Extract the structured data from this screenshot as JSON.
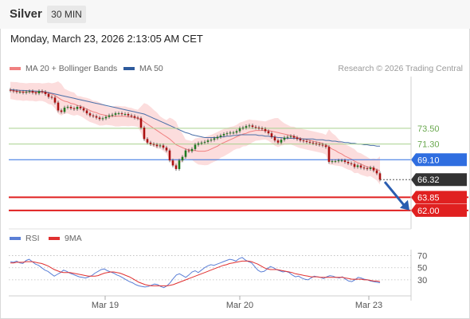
{
  "header": {
    "instrument": "Silver",
    "timeframe": "30 MIN"
  },
  "datetime": "Monday, March 23, 2026 2:13:05 AM CET",
  "legend": {
    "ma20": "MA 20 + Bollinger Bands",
    "ma50": "MA 50",
    "credit": "Research © 2026 Trading Central"
  },
  "rsi_legend": {
    "rsi": "RSI",
    "ma": "9MA"
  },
  "colors": {
    "candle": "#1f7a1f",
    "ma20": "#f08080",
    "bands": "#fbd4d4",
    "ma50": "#4a6fa8",
    "resistance": "#a9d18e",
    "pivot": "#2f6ee0",
    "support": "#e02020",
    "current": "#333333",
    "arrow": "#2a5db0",
    "rsi": "#5b7fd6",
    "rsi_ma": "#e03030"
  },
  "chart_data": [
    {
      "type": "candlestick",
      "title": "Silver 30 MIN",
      "x_ticks": [
        "Mar 19",
        "Mar 20",
        "Mar 23"
      ],
      "ylim": [
        60.2,
        80.3
      ],
      "levels": [
        {
          "value": 73.5,
          "label": "73.50",
          "kind": "resistance"
        },
        {
          "value": 71.3,
          "label": "71.30",
          "kind": "resistance"
        },
        {
          "value": 69.1,
          "label": "69.10",
          "kind": "pivot"
        },
        {
          "value": 66.32,
          "label": "66.32",
          "kind": "current"
        },
        {
          "value": 63.85,
          "label": "63.85",
          "kind": "support"
        },
        {
          "value": 62.0,
          "label": "62.00",
          "kind": "support"
        }
      ],
      "close": [
        78.8,
        78.7,
        78.6,
        78.6,
        78.5,
        78.6,
        78.7,
        78.5,
        78.4,
        78.7,
        78.6,
        78.3,
        77.9,
        77.8,
        77.1,
        76.0,
        75.8,
        76.4,
        76.5,
        76.3,
        76.2,
        76.5,
        76.3,
        76.0,
        75.6,
        75.3,
        75.2,
        75.0,
        74.8,
        74.9,
        75.1,
        75.3,
        75.4,
        75.6,
        75.6,
        75.5,
        75.5,
        75.3,
        75.2,
        75.0,
        74.9,
        73.6,
        72.0,
        71.5,
        71.3,
        71.2,
        71.0,
        71.1,
        70.8,
        70.4,
        69.0,
        68.3,
        67.8,
        69.0,
        69.5,
        70.4,
        70.3,
        70.6,
        71.2,
        71.4,
        71.5,
        71.6,
        71.8,
        71.9,
        72.1,
        72.3,
        72.5,
        72.7,
        72.8,
        72.9,
        72.9,
        73.1,
        73.5,
        73.6,
        73.8,
        73.9,
        73.7,
        73.6,
        73.5,
        73.4,
        73.1,
        72.8,
        72.3,
        71.8,
        71.5,
        71.9,
        72.2,
        72.3,
        72.4,
        72.2,
        72.0,
        71.8,
        71.7,
        71.6,
        71.5,
        71.4,
        71.3,
        71.2,
        71.1,
        70.9,
        68.8,
        68.9,
        68.9,
        69.0,
        69.0,
        68.8,
        68.6,
        68.5,
        68.1,
        68.3,
        68.0,
        67.9,
        67.8,
        68.0,
        67.6,
        67.2,
        66.32
      ],
      "ma20": [
        78.8,
        78.75,
        78.7,
        78.65,
        78.6,
        78.6,
        78.6,
        78.6,
        78.55,
        78.6,
        78.55,
        78.5,
        78.4,
        78.3,
        78.1,
        77.8,
        77.5,
        77.3,
        77.2,
        77.0,
        76.9,
        76.7,
        76.6,
        76.4,
        76.2,
        76.0,
        75.8,
        75.7,
        75.5,
        75.4,
        75.3,
        75.2,
        75.2,
        75.2,
        75.2,
        75.2,
        75.2,
        75.1,
        75.1,
        75.0,
        74.9,
        74.7,
        74.4,
        74.1,
        73.8,
        73.5,
        73.2,
        72.9,
        72.6,
        72.3,
        72.0,
        71.6,
        71.2,
        71.0,
        70.8,
        70.6,
        70.5,
        70.4,
        70.4,
        70.3,
        70.3,
        70.3,
        70.4,
        70.6,
        70.8,
        71.0,
        71.3,
        71.5,
        71.7,
        71.9,
        72.1,
        72.3,
        72.5,
        72.7,
        72.8,
        73.0,
        73.1,
        73.2,
        73.2,
        73.2,
        73.2,
        73.2,
        73.1,
        73.0,
        72.9,
        72.8,
        72.7,
        72.6,
        72.5,
        72.4,
        72.2,
        72.1,
        72.0,
        71.9,
        71.8,
        71.7,
        71.6,
        71.5,
        71.4,
        71.2,
        70.9,
        70.6,
        70.4,
        70.1,
        69.9,
        69.6,
        69.4,
        69.2,
        68.9,
        68.7,
        68.5,
        68.3,
        68.1,
        68.0,
        67.9,
        67.7,
        67.6
      ],
      "ma50": [
        78.9,
        78.88,
        78.85,
        78.82,
        78.8,
        78.78,
        78.75,
        78.72,
        78.7,
        78.68,
        78.65,
        78.6,
        78.5,
        78.4,
        78.3,
        78.2,
        78.1,
        78.0,
        77.9,
        77.8,
        77.7,
        77.6,
        77.5,
        77.4,
        77.3,
        77.2,
        77.1,
        77.0,
        76.9,
        76.8,
        76.7,
        76.6,
        76.5,
        76.4,
        76.3,
        76.2,
        76.1,
        76.0,
        75.9,
        75.8,
        75.7,
        75.6,
        75.5,
        75.3,
        75.1,
        74.9,
        74.7,
        74.5,
        74.3,
        74.1,
        73.9,
        73.7,
        73.5,
        73.3,
        73.1,
        72.9,
        72.8,
        72.6,
        72.5,
        72.4,
        72.3,
        72.2,
        72.2,
        72.2,
        72.2,
        72.2,
        72.3,
        72.3,
        72.4,
        72.4,
        72.5,
        72.5,
        72.6,
        72.6,
        72.6,
        72.6,
        72.6,
        72.6,
        72.5,
        72.5,
        72.4,
        72.4,
        72.3,
        72.3,
        72.2,
        72.2,
        72.1,
        72.1,
        72.1,
        72.1,
        72.1,
        72.0,
        72.0,
        72.0,
        72.0,
        72.0,
        71.9,
        71.9,
        71.9,
        71.8,
        71.8,
        71.7,
        71.7,
        71.6,
        71.6,
        71.5,
        71.5,
        71.4,
        71.4,
        71.3,
        71.3,
        71.2,
        71.2,
        71.1,
        71.1,
        71.0,
        71.0
      ]
    },
    {
      "type": "line",
      "title": "RSI",
      "y_ticks": [
        70,
        50,
        30
      ],
      "ylim": [
        10,
        80
      ],
      "series": [
        {
          "name": "RSI",
          "values": [
            60,
            59,
            61,
            58,
            57,
            62,
            64,
            60,
            56,
            54,
            50,
            46,
            44,
            40,
            36,
            39,
            42,
            46,
            44,
            41,
            39,
            37,
            35,
            34,
            33,
            35,
            37,
            41,
            44,
            47,
            48,
            45,
            43,
            41,
            38,
            36,
            33,
            30,
            27,
            25,
            22,
            20,
            19,
            18,
            19,
            21,
            23,
            22,
            19,
            17,
            20,
            25,
            32,
            38,
            40,
            37,
            34,
            38,
            43,
            45,
            42,
            46,
            50,
            53,
            55,
            54,
            56,
            58,
            60,
            62,
            64,
            63,
            61,
            65,
            67,
            63,
            60,
            58,
            52,
            46,
            43,
            44,
            48,
            52,
            50,
            47,
            45,
            43,
            44,
            42,
            38,
            35,
            36,
            33,
            31,
            30,
            33,
            36,
            35,
            34,
            32,
            35,
            37,
            36,
            34,
            33,
            35,
            31,
            28,
            27,
            30,
            34,
            33,
            31,
            30,
            28,
            27,
            26,
            25
          ]
        },
        {
          "name": "9MA",
          "values": [
            58,
            58,
            59,
            59,
            59,
            60,
            60,
            60,
            59,
            58,
            57,
            55,
            53,
            50,
            47,
            45,
            43,
            42,
            42,
            42,
            41,
            40,
            39,
            38,
            37,
            36,
            36,
            36,
            37,
            39,
            41,
            42,
            43,
            43,
            42,
            41,
            39,
            37,
            35,
            32,
            29,
            26,
            24,
            22,
            21,
            20,
            20,
            20,
            20,
            20,
            20,
            21,
            22,
            24,
            26,
            28,
            30,
            32,
            34,
            36,
            38,
            40,
            42,
            44,
            46,
            48,
            50,
            52,
            54,
            55,
            57,
            58,
            59,
            60,
            61,
            61,
            61,
            60,
            58,
            56,
            53,
            50,
            48,
            47,
            47,
            47,
            46,
            45,
            44,
            43,
            42,
            40,
            39,
            38,
            37,
            36,
            35,
            35,
            35,
            34,
            34,
            34,
            34,
            34,
            34,
            34,
            34,
            33,
            32,
            31,
            31,
            31,
            31,
            30,
            30,
            29,
            28,
            28,
            27
          ]
        }
      ]
    }
  ]
}
